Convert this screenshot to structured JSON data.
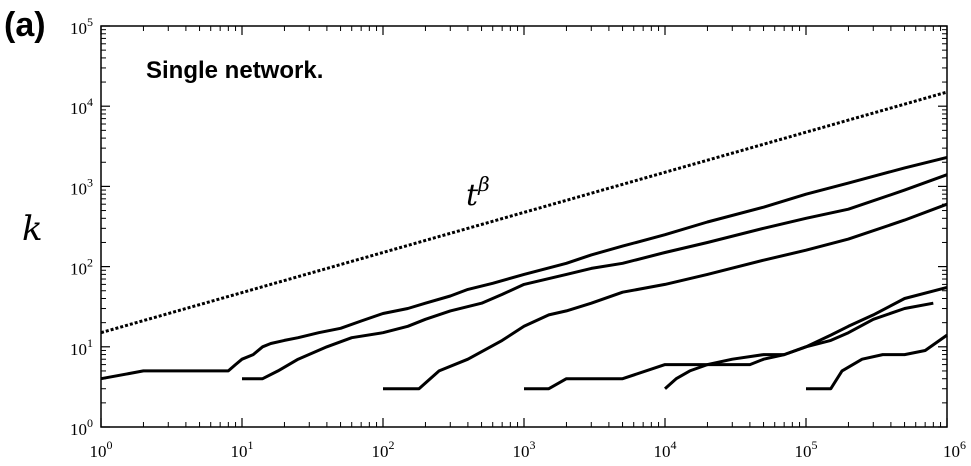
{
  "panel_label": "(a)",
  "chart_data": {
    "type": "line",
    "title": "",
    "annotation": "Single network.",
    "ylabel": "k",
    "xlabel": "",
    "x_scale": "log",
    "y_scale": "log",
    "xlim": [
      1,
      1000000
    ],
    "ylim": [
      1,
      100000
    ],
    "x_tick_labels": [
      {
        "base": "10",
        "exp": "0"
      },
      {
        "base": "10",
        "exp": "1"
      },
      {
        "base": "10",
        "exp": "2"
      },
      {
        "base": "10",
        "exp": "3"
      },
      {
        "base": "10",
        "exp": "4"
      },
      {
        "base": "10",
        "exp": "5"
      },
      {
        "base": "10",
        "exp": "6"
      }
    ],
    "y_tick_labels": [
      {
        "base": "10",
        "exp": "0"
      },
      {
        "base": "10",
        "exp": "1"
      },
      {
        "base": "10",
        "exp": "2"
      },
      {
        "base": "10",
        "exp": "3"
      },
      {
        "base": "10",
        "exp": "4"
      },
      {
        "base": "10",
        "exp": "5"
      }
    ],
    "grid": false,
    "reference_line": {
      "label_base": "t",
      "label_exp": "β",
      "style": "dashed",
      "x": [
        1,
        1000000
      ],
      "y": [
        15,
        15000
      ]
    },
    "series": [
      {
        "x": [
          1,
          2,
          8,
          9,
          10,
          12,
          14,
          16,
          20,
          25,
          35,
          50,
          70,
          100,
          150,
          200,
          300,
          400,
          600,
          1000,
          2000,
          3000,
          5000,
          10000,
          20000,
          50000,
          100000,
          200000,
          500000,
          1000000
        ],
        "y": [
          4,
          5,
          5,
          6,
          7,
          8,
          10,
          11,
          12,
          13,
          15,
          17,
          21,
          26,
          30,
          35,
          43,
          52,
          62,
          80,
          110,
          140,
          180,
          250,
          360,
          550,
          800,
          1100,
          1700,
          2300
        ]
      },
      {
        "x": [
          10,
          14,
          18,
          25,
          40,
          60,
          100,
          150,
          200,
          300,
          500,
          700,
          1000,
          2000,
          3000,
          5000,
          10000,
          20000,
          50000,
          100000,
          200000,
          500000,
          1000000
        ],
        "y": [
          4,
          4,
          5,
          7,
          10,
          13,
          15,
          18,
          22,
          28,
          35,
          45,
          60,
          80,
          95,
          110,
          150,
          200,
          300,
          400,
          520,
          900,
          1400
        ]
      },
      {
        "x": [
          100,
          180,
          250,
          400,
          700,
          1000,
          1500,
          2000,
          3000,
          5000,
          10000,
          20000,
          50000,
          100000,
          200000,
          500000,
          1000000
        ],
        "y": [
          3,
          3,
          5,
          7,
          12,
          18,
          25,
          28,
          35,
          48,
          60,
          80,
          120,
          160,
          220,
          380,
          600
        ]
      },
      {
        "x": [
          1000,
          1500,
          2000,
          5000,
          10000,
          15000,
          20000,
          40000,
          50000,
          70000,
          100000,
          150000,
          200000,
          300000,
          500000,
          1000000
        ],
        "y": [
          3,
          3,
          4,
          4,
          6,
          6,
          6,
          6,
          7,
          8,
          10,
          14,
          18,
          25,
          40,
          55
        ]
      },
      {
        "x": [
          10000,
          12000,
          15000,
          20000,
          30000,
          50000,
          70000,
          100000,
          150000,
          200000,
          300000,
          500000,
          800000
        ],
        "y": [
          3,
          4,
          5,
          6,
          7,
          8,
          8,
          10,
          12,
          15,
          22,
          30,
          35
        ]
      },
      {
        "x": [
          100000,
          150000,
          180000,
          250000,
          350000,
          500000,
          700000,
          1000000
        ],
        "y": [
          3,
          3,
          5,
          7,
          8,
          8,
          9,
          14
        ]
      }
    ]
  }
}
